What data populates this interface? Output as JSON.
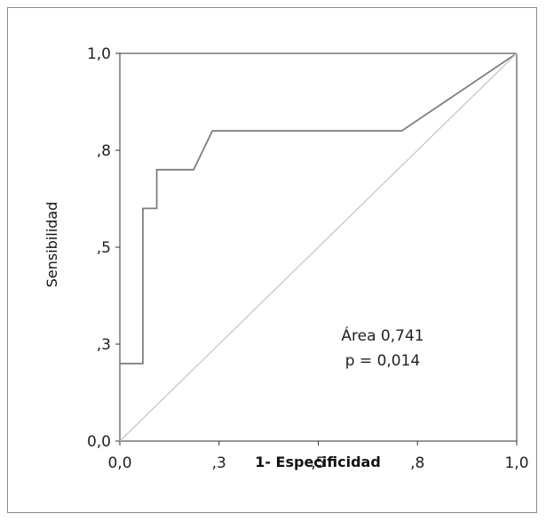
{
  "chart_data": {
    "type": "line",
    "title": "",
    "xlabel": "1- Especificidad",
    "ylabel": "Sensibilidad",
    "xlim": [
      0,
      1
    ],
    "ylim": [
      0,
      1
    ],
    "x_ticks": [
      "0,0",
      ",3",
      ",5",
      ",8",
      "1,0"
    ],
    "y_ticks": [
      "0,0",
      ",3",
      ",5",
      ",8",
      "1,0"
    ],
    "series": [
      {
        "type": "roc-curve",
        "color": "#7f7f7f",
        "x": [
          0.0,
          0.058,
          0.058,
          0.093,
          0.093,
          0.186,
          0.233,
          0.71,
          1.0
        ],
        "y": [
          0.0,
          0.0,
          0.6,
          0.6,
          0.7,
          0.7,
          0.8,
          0.8,
          1.0
        ],
        "y_start": 0.2
      },
      {
        "type": "reference-line",
        "color": "#c8c8c8",
        "x": [
          0,
          1
        ],
        "y": [
          0,
          1
        ]
      }
    ],
    "annotations": {
      "area": "Área 0,741",
      "p_value": "p = 0,014"
    },
    "grid": false
  }
}
